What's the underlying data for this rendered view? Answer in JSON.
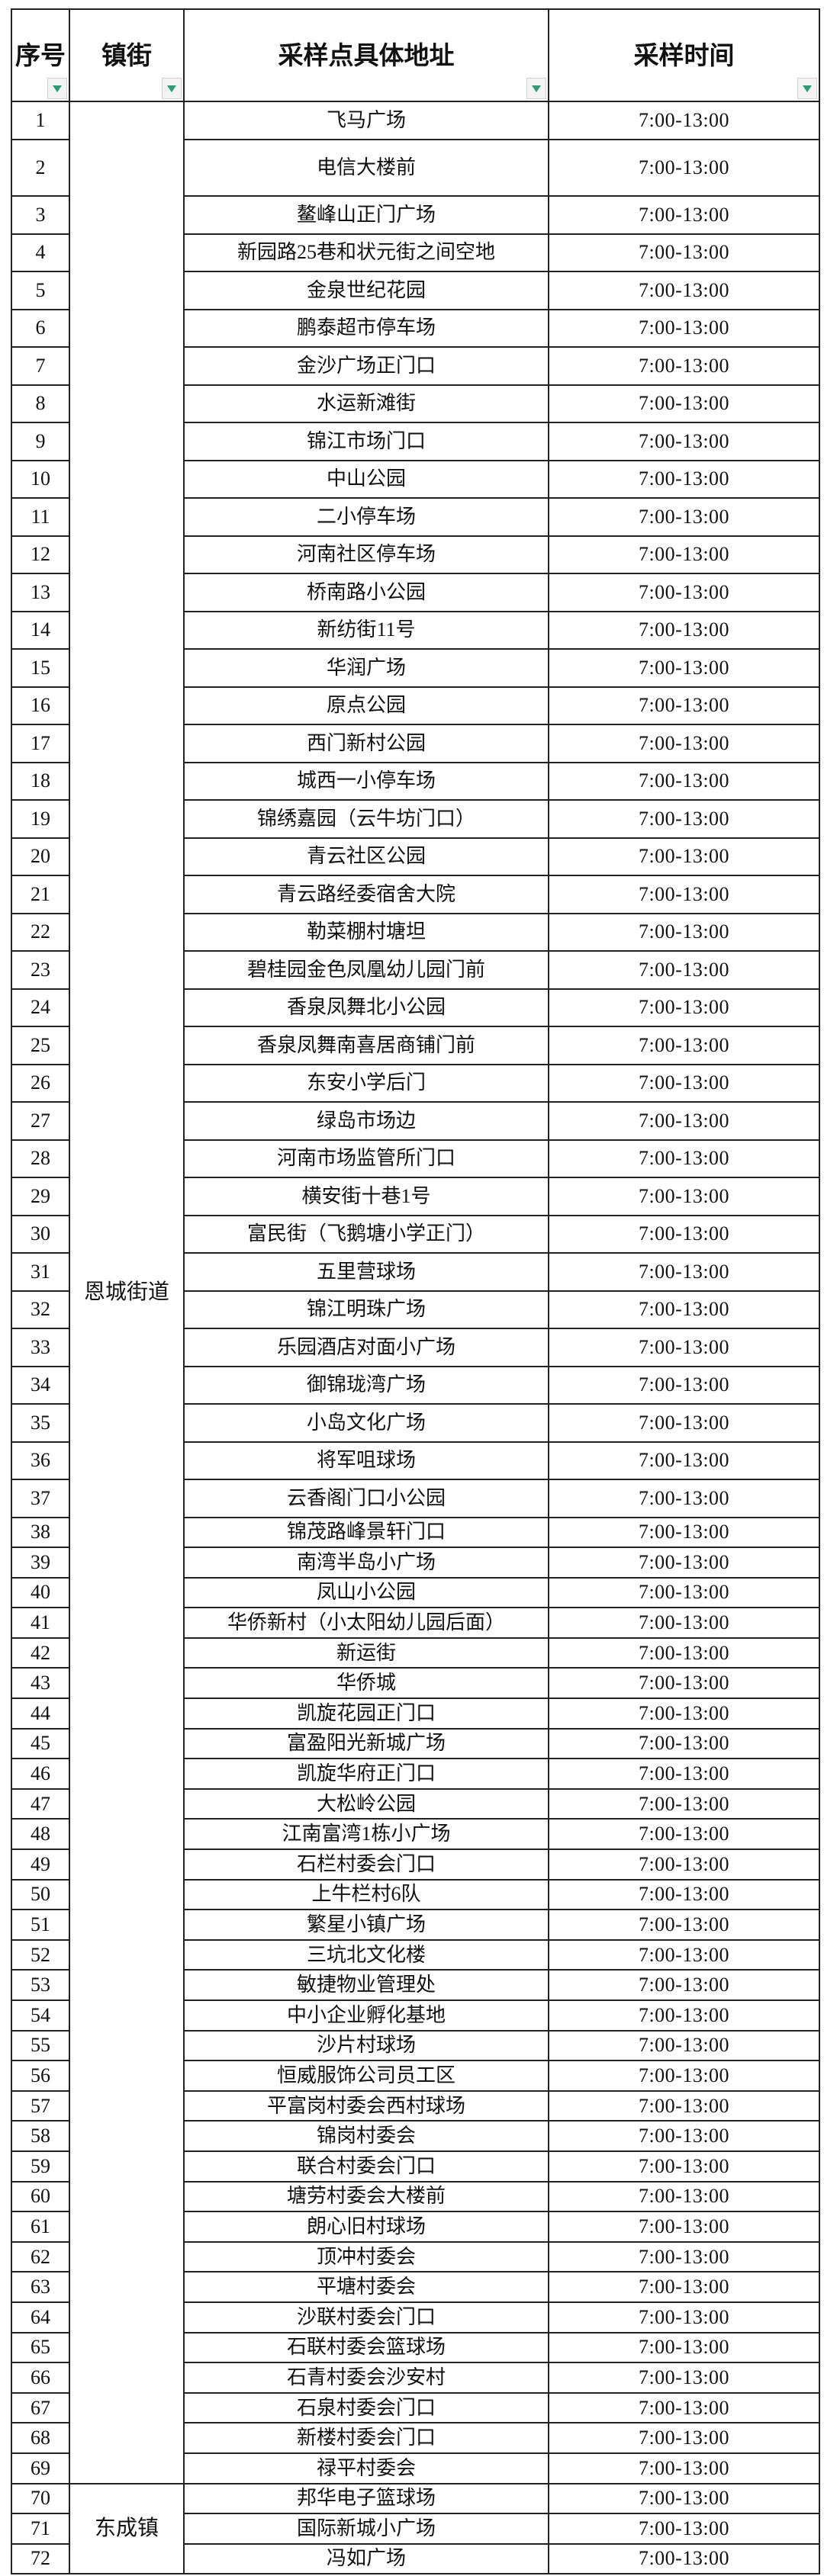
{
  "headers": [
    "序号",
    "镇街",
    "采样点具体地址",
    "采样时间"
  ],
  "filter_icon_color": "#2e9a78",
  "groups": [
    {
      "town": "恩城街道",
      "from": 1,
      "to": 69
    },
    {
      "town": "东成镇",
      "from": 70,
      "to": 72
    }
  ],
  "rows": [
    {
      "no": "1",
      "address": "飞马广场",
      "time": "7:00-13:00"
    },
    {
      "no": "2",
      "address": "电信大楼前",
      "time": "7:00-13:00"
    },
    {
      "no": "3",
      "address": "鳌峰山正门广场",
      "time": "7:00-13:00"
    },
    {
      "no": "4",
      "address": "新园路25巷和状元街之间空地",
      "time": "7:00-13:00"
    },
    {
      "no": "5",
      "address": "金泉世纪花园",
      "time": "7:00-13:00"
    },
    {
      "no": "6",
      "address": "鹏泰超市停车场",
      "time": "7:00-13:00"
    },
    {
      "no": "7",
      "address": "金沙广场正门口",
      "time": "7:00-13:00"
    },
    {
      "no": "8",
      "address": "水运新滩街",
      "time": "7:00-13:00"
    },
    {
      "no": "9",
      "address": "锦江市场门口",
      "time": "7:00-13:00"
    },
    {
      "no": "10",
      "address": "中山公园",
      "time": "7:00-13:00"
    },
    {
      "no": "11",
      "address": "二小停车场",
      "time": "7:00-13:00"
    },
    {
      "no": "12",
      "address": "河南社区停车场",
      "time": "7:00-13:00"
    },
    {
      "no": "13",
      "address": "桥南路小公园",
      "time": "7:00-13:00"
    },
    {
      "no": "14",
      "address": "新纺街11号",
      "time": "7:00-13:00"
    },
    {
      "no": "15",
      "address": "华润广场",
      "time": "7:00-13:00"
    },
    {
      "no": "16",
      "address": "原点公园",
      "time": "7:00-13:00"
    },
    {
      "no": "17",
      "address": "西门新村公园",
      "time": "7:00-13:00"
    },
    {
      "no": "18",
      "address": "城西一小停车场",
      "time": "7:00-13:00"
    },
    {
      "no": "19",
      "address": "锦绣嘉园（云牛坊门口）",
      "time": "7:00-13:00"
    },
    {
      "no": "20",
      "address": "青云社区公园",
      "time": "7:00-13:00"
    },
    {
      "no": "21",
      "address": "青云路经委宿舍大院",
      "time": "7:00-13:00"
    },
    {
      "no": "22",
      "address": "勒菜棚村塘坦",
      "time": "7:00-13:00"
    },
    {
      "no": "23",
      "address": "碧桂园金色凤凰幼儿园门前",
      "time": "7:00-13:00"
    },
    {
      "no": "24",
      "address": "香泉凤舞北小公园",
      "time": "7:00-13:00"
    },
    {
      "no": "25",
      "address": "香泉凤舞南喜居商铺门前",
      "time": "7:00-13:00"
    },
    {
      "no": "26",
      "address": "东安小学后门",
      "time": "7:00-13:00"
    },
    {
      "no": "27",
      "address": "绿岛市场边",
      "time": "7:00-13:00"
    },
    {
      "no": "28",
      "address": "河南市场监管所门口",
      "time": "7:00-13:00"
    },
    {
      "no": "29",
      "address": "横安街十巷1号",
      "time": "7:00-13:00"
    },
    {
      "no": "30",
      "address": "富民街（飞鹅塘小学正门）",
      "time": "7:00-13:00"
    },
    {
      "no": "31",
      "address": "五里营球场",
      "time": "7:00-13:00"
    },
    {
      "no": "32",
      "address": "锦江明珠广场",
      "time": "7:00-13:00"
    },
    {
      "no": "33",
      "address": "乐园酒店对面小广场",
      "time": "7:00-13:00"
    },
    {
      "no": "34",
      "address": "御锦珑湾广场",
      "time": "7:00-13:00"
    },
    {
      "no": "35",
      "address": "小岛文化广场",
      "time": "7:00-13:00"
    },
    {
      "no": "36",
      "address": "将军咀球场",
      "time": "7:00-13:00"
    },
    {
      "no": "37",
      "address": "云香阁门口小公园",
      "time": "7:00-13:00"
    },
    {
      "no": "38",
      "address": "锦茂路峰景轩门口",
      "time": "7:00-13:00"
    },
    {
      "no": "39",
      "address": "南湾半岛小广场",
      "time": "7:00-13:00"
    },
    {
      "no": "40",
      "address": "凤山小公园",
      "time": "7:00-13:00"
    },
    {
      "no": "41",
      "address": "华侨新村（小太阳幼儿园后面）",
      "time": "7:00-13:00"
    },
    {
      "no": "42",
      "address": "新运街",
      "time": "7:00-13:00"
    },
    {
      "no": "43",
      "address": "华侨城",
      "time": "7:00-13:00"
    },
    {
      "no": "44",
      "address": "凯旋花园正门口",
      "time": "7:00-13:00"
    },
    {
      "no": "45",
      "address": "富盈阳光新城广场",
      "time": "7:00-13:00"
    },
    {
      "no": "46",
      "address": "凯旋华府正门口",
      "time": "7:00-13:00"
    },
    {
      "no": "47",
      "address": "大松岭公园",
      "time": "7:00-13:00"
    },
    {
      "no": "48",
      "address": "江南富湾1栋小广场",
      "time": "7:00-13:00"
    },
    {
      "no": "49",
      "address": "石栏村委会门口",
      "time": "7:00-13:00"
    },
    {
      "no": "50",
      "address": "上牛栏村6队",
      "time": "7:00-13:00"
    },
    {
      "no": "51",
      "address": "繁星小镇广场",
      "time": "7:00-13:00"
    },
    {
      "no": "52",
      "address": "三坑北文化楼",
      "time": "7:00-13:00"
    },
    {
      "no": "53",
      "address": "敏捷物业管理处",
      "time": "7:00-13:00"
    },
    {
      "no": "54",
      "address": "中小企业孵化基地",
      "time": "7:00-13:00"
    },
    {
      "no": "55",
      "address": "沙片村球场",
      "time": "7:00-13:00"
    },
    {
      "no": "56",
      "address": "恒威服饰公司员工区",
      "time": "7:00-13:00"
    },
    {
      "no": "57",
      "address": "平富岗村委会西村球场",
      "time": "7:00-13:00"
    },
    {
      "no": "58",
      "address": "锦岗村委会",
      "time": "7:00-13:00"
    },
    {
      "no": "59",
      "address": "联合村委会门口",
      "time": "7:00-13:00"
    },
    {
      "no": "60",
      "address": "塘劳村委会大楼前",
      "time": "7:00-13:00"
    },
    {
      "no": "61",
      "address": "朗心旧村球场",
      "time": "7:00-13:00"
    },
    {
      "no": "62",
      "address": "顶冲村委会",
      "time": "7:00-13:00"
    },
    {
      "no": "63",
      "address": "平塘村委会",
      "time": "7:00-13:00"
    },
    {
      "no": "64",
      "address": "沙联村委会门口",
      "time": "7:00-13:00"
    },
    {
      "no": "65",
      "address": "石联村委会篮球场",
      "time": "7:00-13:00"
    },
    {
      "no": "66",
      "address": "石青村委会沙安村",
      "time": "7:00-13:00"
    },
    {
      "no": "67",
      "address": "石泉村委会门口",
      "time": "7:00-13:00"
    },
    {
      "no": "68",
      "address": "新楼村委会门口",
      "time": "7:00-13:00"
    },
    {
      "no": "69",
      "address": "禄平村委会",
      "time": "7:00-13:00"
    },
    {
      "no": "70",
      "address": "邦华电子篮球场",
      "time": "7:00-13:00"
    },
    {
      "no": "71",
      "address": "国际新城小广场",
      "time": "7:00-13:00"
    },
    {
      "no": "72",
      "address": "冯如广场",
      "time": "7:00-13:00"
    }
  ]
}
